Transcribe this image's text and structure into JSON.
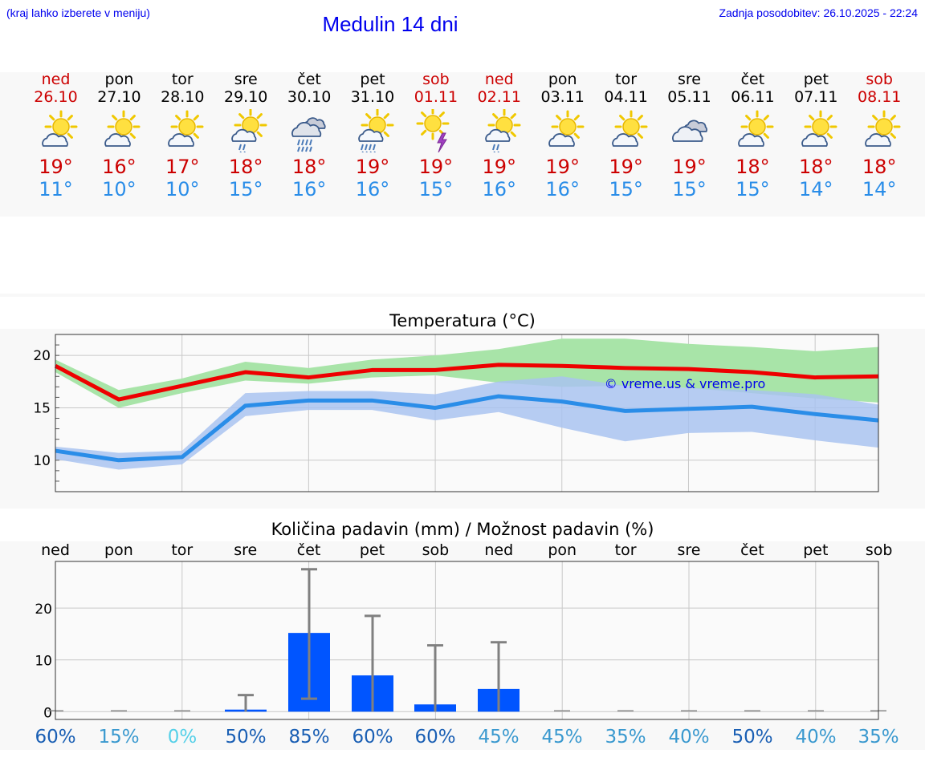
{
  "header": {
    "menu_hint": "(kraj lahko izberete v meniju)",
    "title": "Medulin 14 dni",
    "updated": "Zadnja posodobitev: 26.10.2025 - 22:24"
  },
  "days": [
    {
      "name": "ned",
      "date": "26.10",
      "icon": "sun-partly-cloudy-icon",
      "tmax": "19°",
      "tmin": "11°",
      "weekend": true
    },
    {
      "name": "pon",
      "date": "27.10",
      "icon": "sun-partly-cloudy-icon",
      "tmax": "16°",
      "tmin": "10°",
      "weekend": false
    },
    {
      "name": "tor",
      "date": "28.10",
      "icon": "sun-partly-cloudy-icon",
      "tmax": "17°",
      "tmin": "10°",
      "weekend": false
    },
    {
      "name": "sre",
      "date": "29.10",
      "icon": "sun-cloud-light-rain-icon",
      "tmax": "18°",
      "tmin": "15°",
      "weekend": false
    },
    {
      "name": "čet",
      "date": "30.10",
      "icon": "cloud-heavy-rain-icon",
      "tmax": "18°",
      "tmin": "16°",
      "weekend": false
    },
    {
      "name": "pet",
      "date": "31.10",
      "icon": "sun-cloud-rain-icon",
      "tmax": "19°",
      "tmin": "16°",
      "weekend": false
    },
    {
      "name": "sob",
      "date": "01.11",
      "icon": "sun-thunderstorm-icon",
      "tmax": "19°",
      "tmin": "15°",
      "weekend": true
    },
    {
      "name": "ned",
      "date": "02.11",
      "icon": "sun-cloud-light-rain-icon",
      "tmax": "19°",
      "tmin": "16°",
      "weekend": true
    },
    {
      "name": "pon",
      "date": "03.11",
      "icon": "sun-partly-cloudy-icon",
      "tmax": "19°",
      "tmin": "16°",
      "weekend": false
    },
    {
      "name": "tor",
      "date": "04.11",
      "icon": "sun-partly-cloudy-icon",
      "tmax": "19°",
      "tmin": "15°",
      "weekend": false
    },
    {
      "name": "sre",
      "date": "05.11",
      "icon": "cloudy-icon",
      "tmax": "19°",
      "tmin": "15°",
      "weekend": false
    },
    {
      "name": "čet",
      "date": "06.11",
      "icon": "sun-partly-cloudy-icon",
      "tmax": "18°",
      "tmin": "15°",
      "weekend": false
    },
    {
      "name": "pet",
      "date": "07.11",
      "icon": "sun-partly-cloudy-icon",
      "tmax": "18°",
      "tmin": "14°",
      "weekend": false
    },
    {
      "name": "sob",
      "date": "08.11",
      "icon": "sun-partly-cloudy-icon",
      "tmax": "18°",
      "tmin": "14°",
      "weekend": true
    }
  ],
  "colors": {
    "max_line": "#ee0000",
    "max_band": "#a8e4a8",
    "min_line": "#2a8de8",
    "min_band": "#a9c3f0",
    "overlap_band": "#7cc3a7",
    "bar": "#0055ff",
    "error_bar": "#808080",
    "weekend": "#cc0000",
    "link": "#0000ee"
  },
  "chart_data": [
    {
      "type": "line",
      "title": "Temperatura (°C)",
      "watermark": "© vreme.us & vreme.pro",
      "ylim": [
        7,
        22
      ],
      "yticks": [
        10,
        15,
        20
      ],
      "series": [
        {
          "name": "max",
          "values": [
            19.0,
            15.8,
            17.1,
            18.4,
            17.9,
            18.6,
            18.6,
            19.1,
            19.0,
            18.8,
            18.7,
            18.4,
            17.9,
            18.0
          ],
          "band_low": [
            18.4,
            15.0,
            16.4,
            17.6,
            17.3,
            17.9,
            18.1,
            17.4,
            17.0,
            17.1,
            16.9,
            16.4,
            15.9,
            15.5
          ],
          "band_high": [
            19.6,
            16.7,
            17.8,
            19.4,
            18.8,
            19.6,
            20.0,
            20.6,
            21.6,
            21.6,
            21.1,
            20.8,
            20.4,
            20.8
          ]
        },
        {
          "name": "min",
          "values": [
            10.9,
            10.0,
            10.3,
            15.2,
            15.7,
            15.7,
            15.0,
            16.1,
            15.6,
            14.7,
            14.9,
            15.1,
            14.4,
            13.8
          ],
          "band_low": [
            10.1,
            9.1,
            9.6,
            14.2,
            14.8,
            14.8,
            13.8,
            14.6,
            13.1,
            11.8,
            12.6,
            12.7,
            11.9,
            11.2
          ],
          "band_high": [
            11.3,
            10.7,
            10.9,
            16.4,
            16.6,
            16.6,
            16.3,
            17.5,
            18.0,
            17.1,
            16.9,
            16.7,
            16.3,
            15.3
          ]
        }
      ]
    },
    {
      "type": "bar",
      "title": "Količina padavin (mm) / Možnost padavin (%)",
      "categories": [
        "ned",
        "pon",
        "tor",
        "sre",
        "čet",
        "pet",
        "sob",
        "ned",
        "pon",
        "tor",
        "sre",
        "čet",
        "pet",
        "sob"
      ],
      "ylim": [
        -1.5,
        29
      ],
      "yticks": [
        0,
        10,
        20
      ],
      "values": [
        0,
        0,
        0,
        0.4,
        15.2,
        7.0,
        1.4,
        4.4,
        0,
        0,
        0,
        0,
        0,
        0
      ],
      "error_low": [
        0,
        0,
        0,
        0,
        2.5,
        0,
        0,
        0,
        0,
        0,
        0,
        0,
        0,
        0
      ],
      "error_high": [
        0,
        0,
        0,
        3.2,
        27.5,
        18.5,
        12.8,
        13.4,
        0,
        0,
        0,
        0,
        0,
        0
      ],
      "probability": [
        "60%",
        "15%",
        "0%",
        "50%",
        "85%",
        "60%",
        "60%",
        "45%",
        "45%",
        "35%",
        "40%",
        "50%",
        "40%",
        "35%"
      ],
      "probability_colors": [
        "#1a5fb4",
        "#3a99cf",
        "#55d0e8",
        "#1a5fb4",
        "#1a5fb4",
        "#1a5fb4",
        "#1a5fb4",
        "#3a99cf",
        "#3a99cf",
        "#3a99cf",
        "#3a99cf",
        "#1a5fb4",
        "#3a99cf",
        "#3a99cf"
      ]
    }
  ]
}
